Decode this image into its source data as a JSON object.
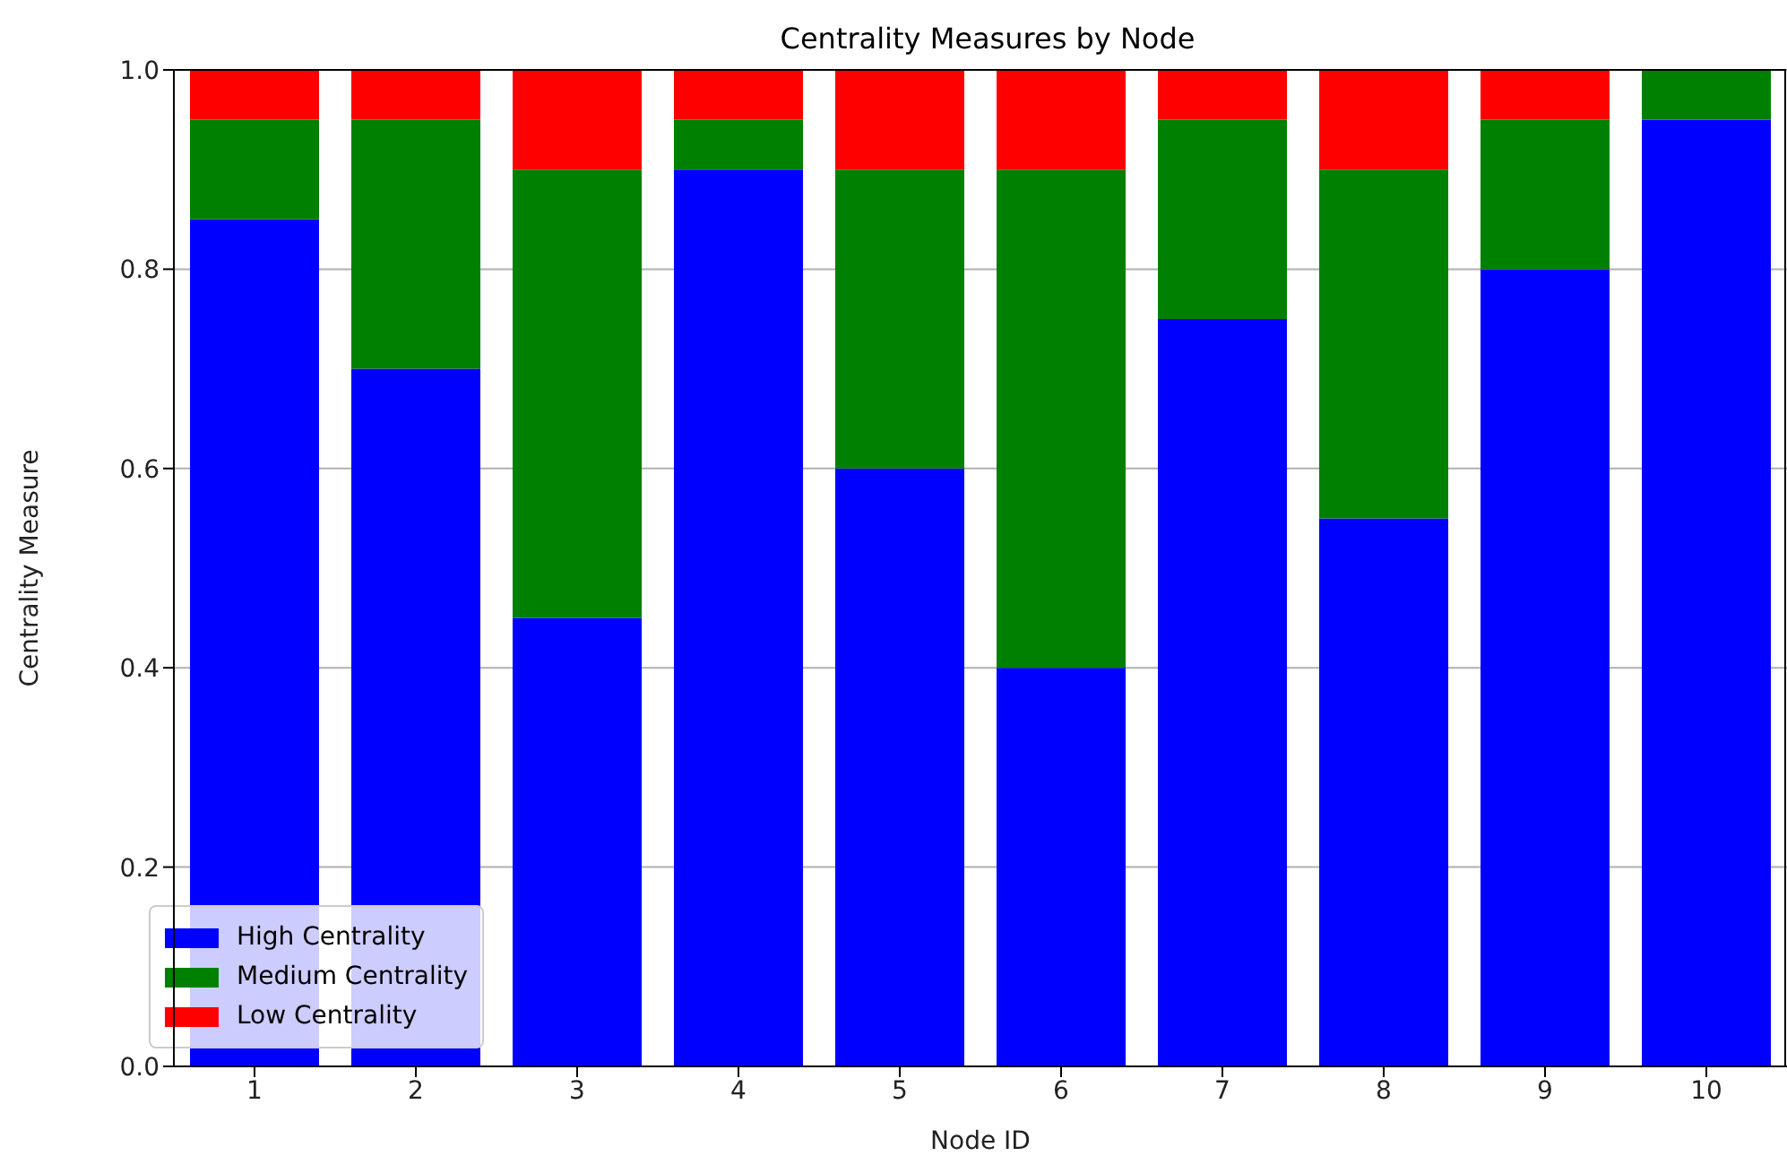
{
  "chart_data": {
    "type": "bar",
    "title": "Centrality Measures by Node",
    "xlabel": "Node ID",
    "ylabel": "Centrality Measure",
    "categories": [
      "1",
      "2",
      "3",
      "4",
      "5",
      "6",
      "7",
      "8",
      "9",
      "10"
    ],
    "stacked": true,
    "series": [
      {
        "name": "High Centrality",
        "color": "#0000ff",
        "values": [
          0.85,
          0.7,
          0.45,
          0.9,
          0.6,
          0.4,
          0.75,
          0.55,
          0.8,
          0.95
        ]
      },
      {
        "name": "Medium Centrality",
        "color": "#008000",
        "values": [
          0.1,
          0.25,
          0.45,
          0.05,
          0.3,
          0.5,
          0.2,
          0.35,
          0.15,
          0.05
        ]
      },
      {
        "name": "Low Centrality",
        "color": "#ff0000",
        "values": [
          0.05,
          0.05,
          0.1,
          0.05,
          0.1,
          0.1,
          0.05,
          0.1,
          0.05,
          0.0
        ]
      }
    ],
    "ylim": [
      0,
      1
    ],
    "yticks": [
      {
        "value": 0,
        "label": "0.0"
      },
      {
        "value": 0.2,
        "label": "0.2"
      },
      {
        "value": 0.4,
        "label": "0.4"
      },
      {
        "value": 0.6,
        "label": "0.6"
      },
      {
        "value": 0.8,
        "label": "0.8"
      },
      {
        "value": 1,
        "label": "1.0"
      }
    ],
    "grid": "y",
    "legend": "bottom left"
  }
}
